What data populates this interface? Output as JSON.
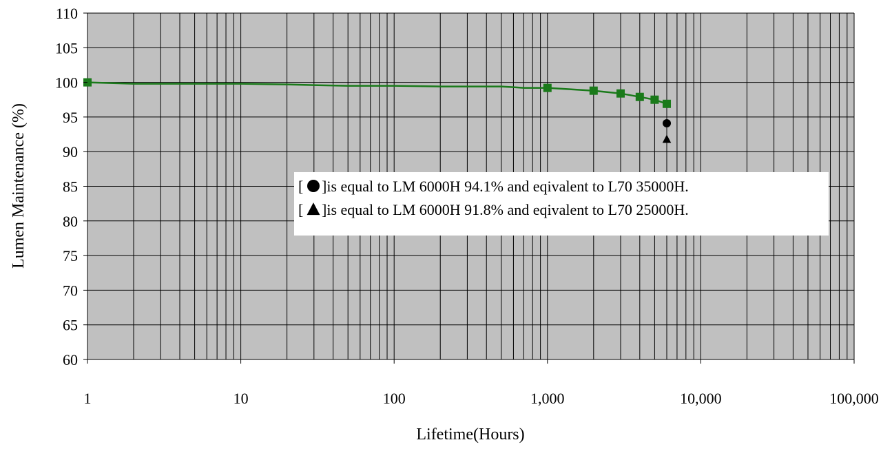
{
  "chart_data": {
    "type": "line",
    "title": "",
    "xlabel": "Lifetime(Hours)",
    "ylabel": "Lumen Maintenance (%)",
    "xscale": "log",
    "xlim": [
      1,
      100000
    ],
    "ylim": [
      60,
      110
    ],
    "x_ticks": [
      1,
      10,
      100,
      1000,
      10000,
      100000
    ],
    "x_tick_labels": [
      "1",
      "10",
      "100",
      "1,000",
      "10,000",
      "100,000"
    ],
    "y_ticks": [
      60,
      65,
      70,
      75,
      80,
      85,
      90,
      95,
      100,
      105,
      110
    ],
    "y_tick_labels": [
      "60",
      "65",
      "70",
      "75",
      "80",
      "85",
      "90",
      "95",
      "100",
      "105",
      "110"
    ],
    "grid": true,
    "colors": {
      "plot_bg": "#c0c0c0",
      "grid": "#000000",
      "series": "#1a7a1a",
      "marker": "#1a7a1a",
      "annotation": "#000000"
    },
    "series": [
      {
        "name": "",
        "line": {
          "x": [
            1,
            2,
            5,
            10,
            20,
            30,
            50,
            100,
            200,
            300,
            500,
            600,
            700,
            1000,
            2000,
            3000,
            4000,
            5000,
            6000
          ],
          "y": [
            100,
            99.8,
            99.8,
            99.8,
            99.7,
            99.6,
            99.5,
            99.5,
            99.4,
            99.4,
            99.4,
            99.3,
            99.2,
            99.2,
            98.8,
            98.4,
            97.9,
            97.5,
            96.9
          ]
        },
        "markers": {
          "shape": "square",
          "x": [
            1,
            1000,
            2000,
            3000,
            4000,
            5000,
            6000
          ],
          "y": [
            100,
            99.2,
            98.8,
            98.4,
            97.9,
            97.5,
            96.9
          ]
        }
      }
    ],
    "annotations": [
      {
        "shape": "circle",
        "x": 6000,
        "y": 94.1
      },
      {
        "shape": "triangle",
        "x": 6000,
        "y": 91.8
      }
    ],
    "legend": {
      "position": "center-right",
      "entries": [
        {
          "shape": "circle",
          "text": "]is equal to LM 6000H 94.1% and eqivalent to L70 35000H."
        },
        {
          "shape": "triangle",
          "text": "]is equal to LM 6000H 91.8% and eqivalent to L70 25000H."
        }
      ],
      "bracket_open": "["
    }
  }
}
